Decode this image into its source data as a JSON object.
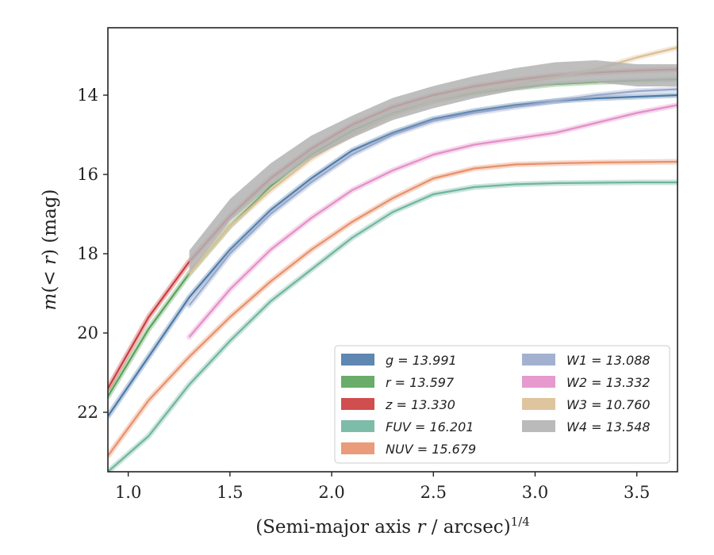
{
  "chart_data": {
    "type": "line",
    "title": "",
    "xlabel": "(Semi-major axis r / arcsec)^1/4",
    "xlabel_parts": {
      "prefix": "(Semi-major axis ",
      "var": "r",
      "suffix": " / arcsec)",
      "sup": "1/4"
    },
    "ylabel": "m(< r) (mag)",
    "ylabel_parts": {
      "var": "m",
      "open": "(",
      "lt": "< ",
      "var2": "r",
      "close": ") (mag)"
    },
    "xlim": [
      0.9,
      3.7
    ],
    "ylim": [
      23.5,
      12.3
    ],
    "y_inverted": true,
    "x_ticks": [
      1.0,
      1.5,
      2.0,
      2.5,
      3.0,
      3.5
    ],
    "x_tick_labels": [
      "1.0",
      "1.5",
      "2.0",
      "2.5",
      "3.0",
      "3.5"
    ],
    "y_ticks": [
      14,
      16,
      18,
      20,
      22
    ],
    "y_tick_labels": [
      "14",
      "16",
      "18",
      "20",
      "22"
    ],
    "legend_position": "lower-right",
    "legend_columns": 2,
    "series": [
      {
        "name": "g",
        "legend_label": "g = 13.991",
        "color": "#4c7aa8",
        "x": [
          0.9,
          1.1,
          1.3,
          1.5,
          1.7,
          1.9,
          2.1,
          2.3,
          2.5,
          2.7,
          2.9,
          3.1,
          3.3,
          3.5,
          3.7
        ],
        "y": [
          22.1,
          20.6,
          19.1,
          17.9,
          16.9,
          16.1,
          15.4,
          14.95,
          14.6,
          14.4,
          14.25,
          14.15,
          14.08,
          14.04,
          14.0
        ]
      },
      {
        "name": "r",
        "legend_label": "r = 13.597",
        "color": "#5aa35a",
        "x": [
          0.9,
          1.1,
          1.3,
          1.5,
          1.7,
          1.9,
          2.1,
          2.3,
          2.5,
          2.7,
          2.9,
          3.1,
          3.3,
          3.5,
          3.7
        ],
        "y": [
          21.6,
          19.9,
          18.5,
          17.3,
          16.3,
          15.5,
          14.9,
          14.45,
          14.15,
          13.95,
          13.82,
          13.72,
          13.67,
          13.63,
          13.6
        ]
      },
      {
        "name": "z",
        "legend_label": "z = 13.330",
        "color": "#cc3b3b",
        "x": [
          0.9,
          1.1,
          1.3,
          1.5,
          1.7,
          1.9,
          2.1,
          2.3,
          2.5,
          2.7,
          2.9,
          3.1,
          3.3,
          3.5,
          3.7
        ],
        "y": [
          21.4,
          19.6,
          18.2,
          17.05,
          16.1,
          15.35,
          14.75,
          14.3,
          14.0,
          13.78,
          13.62,
          13.5,
          13.43,
          13.38,
          13.35
        ]
      },
      {
        "name": "FUV",
        "legend_label": "FUV = 16.201",
        "color": "#6fb5a0",
        "x": [
          0.9,
          1.1,
          1.3,
          1.5,
          1.7,
          1.9,
          2.1,
          2.3,
          2.5,
          2.7,
          2.9,
          3.1,
          3.3,
          3.5,
          3.7
        ],
        "y": [
          23.5,
          22.6,
          21.3,
          20.2,
          19.2,
          18.4,
          17.6,
          16.95,
          16.5,
          16.32,
          16.25,
          16.22,
          16.21,
          16.2,
          16.2
        ]
      },
      {
        "name": "NUV",
        "legend_label": "NUV = 15.679",
        "color": "#e8906a",
        "x": [
          0.9,
          1.1,
          1.3,
          1.5,
          1.7,
          1.9,
          2.1,
          2.3,
          2.5,
          2.7,
          2.9,
          3.1,
          3.3,
          3.5,
          3.7
        ],
        "y": [
          23.1,
          21.7,
          20.6,
          19.6,
          18.7,
          17.9,
          17.2,
          16.6,
          16.1,
          15.85,
          15.75,
          15.72,
          15.7,
          15.69,
          15.68
        ]
      },
      {
        "name": "W1",
        "legend_label": "W1 = 13.088",
        "color": "#99a8cc",
        "x": [
          1.3,
          1.5,
          1.7,
          1.9,
          2.1,
          2.3,
          2.5,
          2.7,
          2.9,
          3.1,
          3.3,
          3.5,
          3.7
        ],
        "y": [
          19.3,
          18.0,
          17.0,
          16.2,
          15.5,
          15.0,
          14.65,
          14.45,
          14.3,
          14.15,
          14.0,
          13.9,
          13.85
        ]
      },
      {
        "name": "W2",
        "legend_label": "W2 = 13.332",
        "color": "#e38fc8",
        "x": [
          1.3,
          1.5,
          1.7,
          1.9,
          2.1,
          2.3,
          2.5,
          2.7,
          2.9,
          3.1,
          3.3,
          3.5,
          3.7
        ],
        "y": [
          20.1,
          18.9,
          17.9,
          17.1,
          16.4,
          15.9,
          15.5,
          15.25,
          15.1,
          14.95,
          14.7,
          14.45,
          14.25
        ]
      },
      {
        "name": "W3",
        "legend_label": "W3 = 10.760",
        "color": "#dcbf94",
        "x": [
          1.3,
          1.5,
          1.7,
          1.9,
          2.1,
          2.3,
          2.5,
          2.7,
          2.9,
          3.1,
          3.3,
          3.5,
          3.7
        ],
        "y": [
          18.5,
          17.3,
          16.4,
          15.6,
          15.0,
          14.5,
          14.15,
          13.9,
          13.75,
          13.55,
          13.35,
          13.05,
          12.8
        ]
      },
      {
        "name": "W4",
        "legend_label": "W4 = 13.548",
        "color": "#b3b3b3",
        "x": [
          1.3,
          1.5,
          1.7,
          1.9,
          2.1,
          2.3,
          2.5,
          2.7,
          2.9,
          3.1,
          3.3,
          3.5,
          3.7
        ],
        "y": [
          18.2,
          16.9,
          16.0,
          15.3,
          14.8,
          14.35,
          14.05,
          13.8,
          13.6,
          13.45,
          13.4,
          13.5,
          13.5
        ]
      }
    ]
  }
}
